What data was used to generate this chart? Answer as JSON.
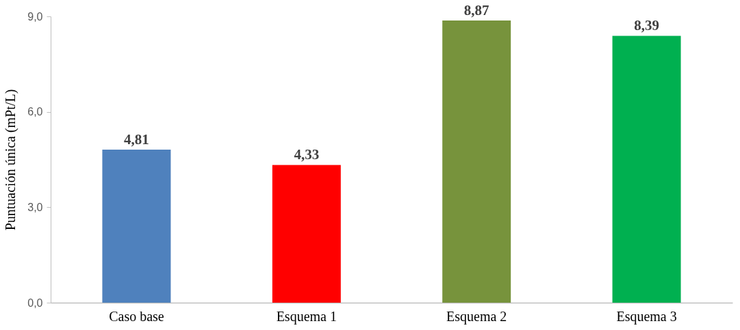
{
  "chart_data": {
    "type": "bar",
    "ylabel": "Puntuación única  (mPt/L)",
    "categories": [
      "Caso base",
      "Esquema 1",
      "Esquema 2",
      "Esquema 3"
    ],
    "values": [
      4.81,
      4.33,
      8.87,
      8.39
    ],
    "colors": [
      "#4f81bd",
      "#ff0000",
      "#77933c",
      "#00b050"
    ],
    "value_labels": [
      "4,81",
      "4,33",
      "8,87",
      "8,39"
    ],
    "ylim": [
      0,
      9
    ],
    "yticks": [
      {
        "value": 0,
        "label": "0,0"
      },
      {
        "value": 3,
        "label": "3,0"
      },
      {
        "value": 6,
        "label": "6,0"
      },
      {
        "value": 9,
        "label": "9,0"
      }
    ],
    "grid": false
  }
}
